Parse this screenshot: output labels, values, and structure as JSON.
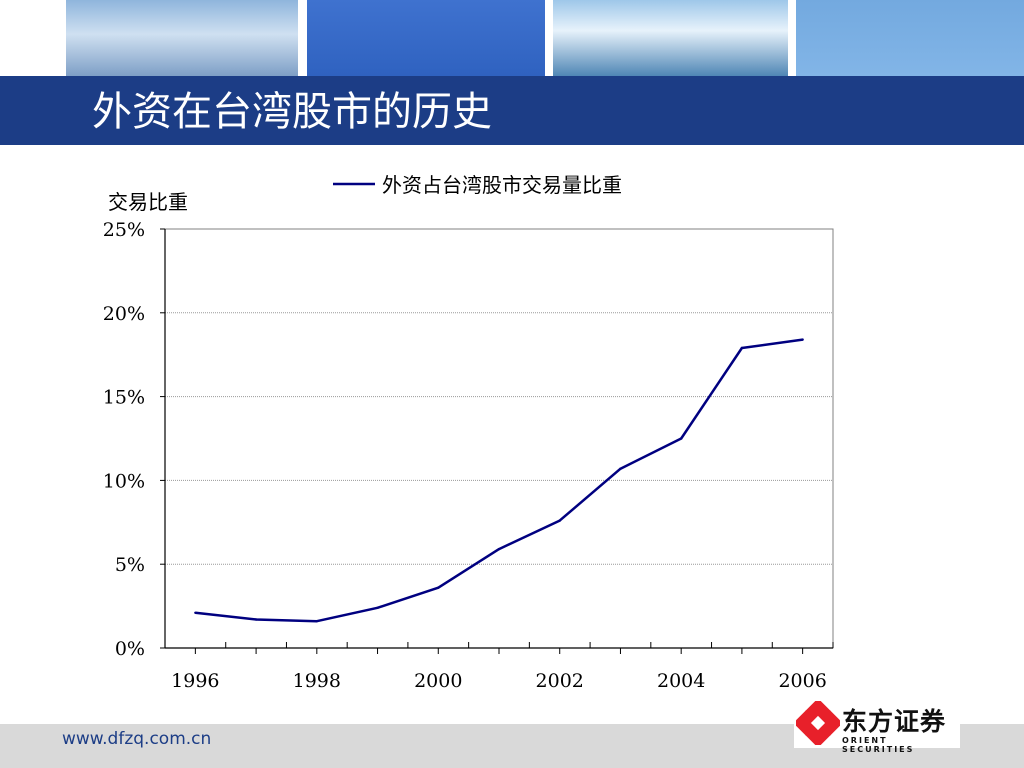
{
  "slide": {
    "title": "外资在台湾股市的历史",
    "footer_url": "www.dfzq.com.cn",
    "logo": {
      "name": "东方证券",
      "subtitle": "ORIENT SECURITIES",
      "mark_color": "#e8202a"
    },
    "colors": {
      "title_bar": "#1c3d86",
      "footer": "#d9d9d9",
      "series": "#000080"
    }
  },
  "chart_data": {
    "type": "line",
    "title": "",
    "ylabel": "交易比重",
    "xlabel": "",
    "ylim": [
      0,
      25
    ],
    "xlim": [
      1995.5,
      2006.5
    ],
    "grid": true,
    "legend_position": "top",
    "y_ticks": [
      "0%",
      "5%",
      "10%",
      "15%",
      "20%",
      "25%"
    ],
    "x_ticks": [
      "1996",
      "1998",
      "2000",
      "2002",
      "2004",
      "2006"
    ],
    "series": [
      {
        "name": "外资占台湾股市交易量比重",
        "color": "#000080",
        "x": [
          1996,
          1997,
          1998,
          1999,
          2000,
          2001,
          2002,
          2003,
          2004,
          2005,
          2006
        ],
        "values": [
          2.1,
          1.7,
          1.6,
          2.4,
          3.6,
          5.9,
          7.6,
          10.7,
          12.5,
          17.9,
          18.4
        ]
      }
    ]
  }
}
